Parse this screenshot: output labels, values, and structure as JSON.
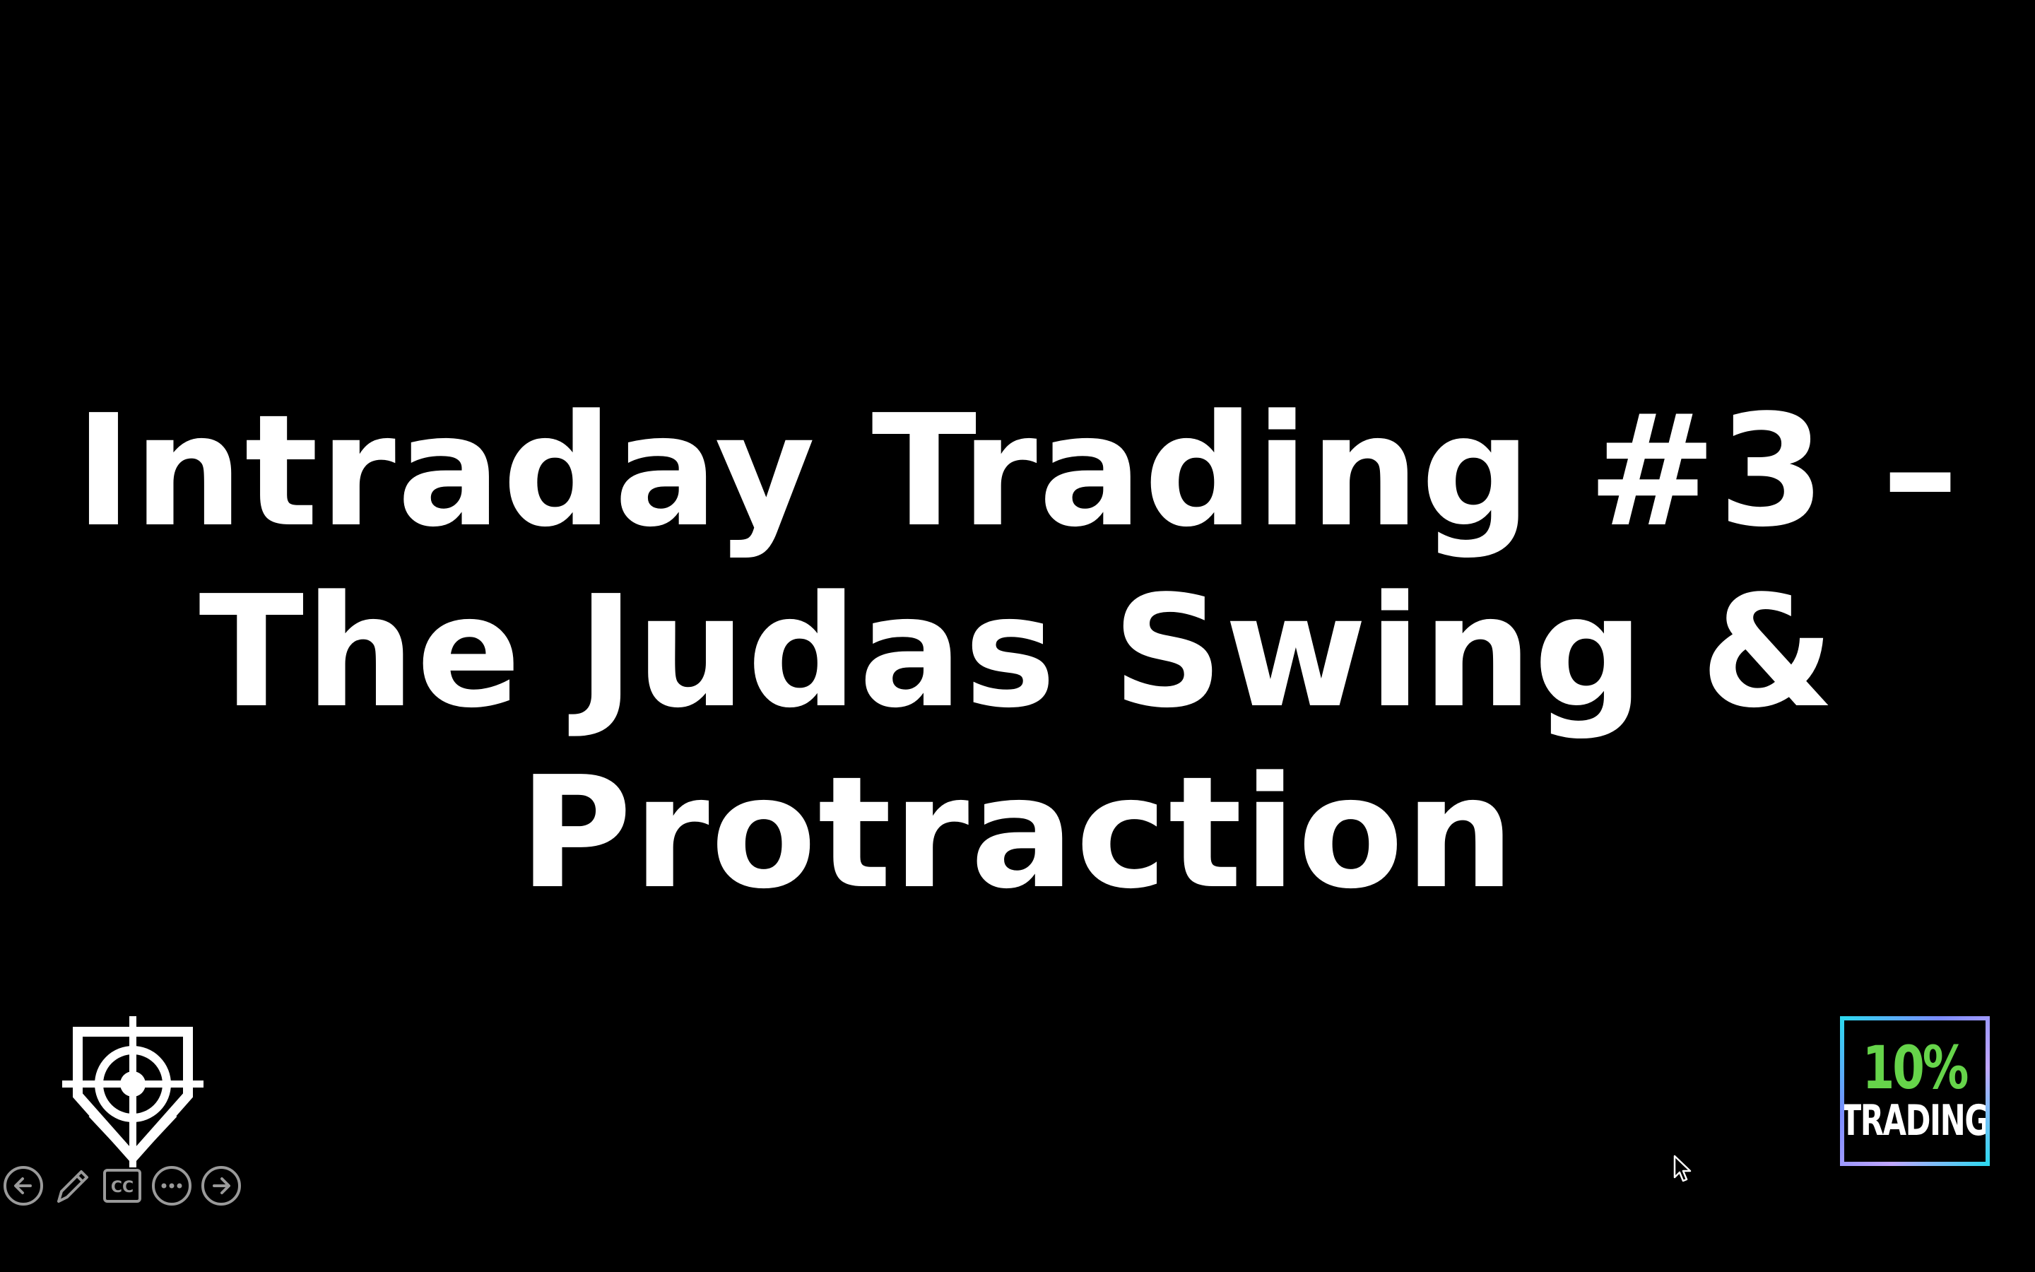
{
  "slide": {
    "title_lines": [
      "Intraday Trading #3 –",
      "The Judas Swing &",
      "Protraction"
    ]
  },
  "badge": {
    "line1": "10%",
    "line2": "TRADING",
    "colors": {
      "percent": "#66d44a",
      "border": "#2ec9e0"
    }
  },
  "controls": [
    {
      "name": "previous-slide",
      "icon": "arrow-left-icon"
    },
    {
      "name": "pen-tool",
      "icon": "pencil-icon"
    },
    {
      "name": "captions",
      "icon": "cc-icon",
      "label": "CC"
    },
    {
      "name": "more-options",
      "icon": "ellipsis-icon"
    },
    {
      "name": "next-slide",
      "icon": "arrow-right-icon"
    }
  ],
  "theme": {
    "background": "#000000",
    "text": "#ffffff",
    "control_stroke": "#9a9a9a"
  }
}
